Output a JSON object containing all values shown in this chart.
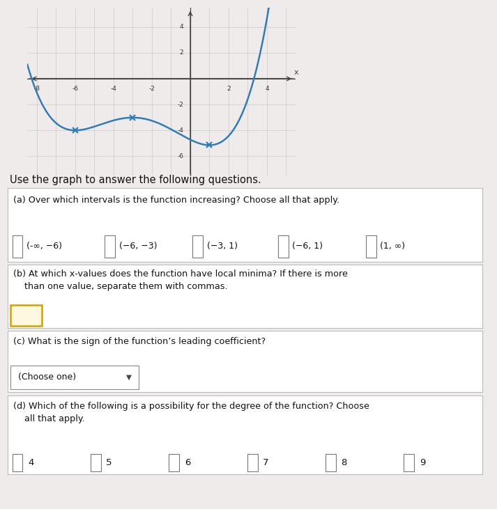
{
  "graph": {
    "xlim": [
      -8.5,
      5.5
    ],
    "ylim": [
      -7.5,
      5.5
    ],
    "xtick_minor": [
      -8,
      -7,
      -6,
      -5,
      -4,
      -3,
      -2,
      -1,
      0,
      1,
      2,
      3,
      4,
      5
    ],
    "ytick_minor": [
      -6,
      -4,
      -2,
      0,
      2,
      4
    ],
    "xlabel_vals": [
      -8,
      -6,
      -4,
      -2,
      2,
      4
    ],
    "ylabel_vals": [
      -6,
      -4,
      -2,
      2,
      4
    ],
    "curve_color": "#2e7db5",
    "curve_lw": 1.8,
    "marker_color": "#2e7db5",
    "grid_color": "#d0c8c8",
    "axis_color": "#444444",
    "bg_color": "#f0ebeb",
    "box_outline": "#999999",
    "poly_a": 0.04,
    "x_start": -8.5,
    "x_end": 4.8
  },
  "question_text": "Use the graph to answer the following questions.",
  "question_text_fontsize": 10.5,
  "parts": [
    {
      "label": "(a)",
      "question": "Over which intervals is the function increasing? Choose all that apply.",
      "options": [
        "(-∞, −6)",
        "(−6, −3)",
        "(−3, 1)",
        "(−6, 1)",
        "(1, ∞)"
      ]
    },
    {
      "label": "(b)",
      "question": "At which x-values does the function have local minima? If there is more than one value, separate them with commas.",
      "input_box": true
    },
    {
      "label": "(c)",
      "question": "What is the sign of the function’s leading coefficient?",
      "dropdown": "(Choose one)"
    },
    {
      "label": "(d)",
      "question": "Which of the following is a possibility for the degree of the function? Choose all that apply.",
      "options_d": [
        "4",
        "5",
        "6",
        "7",
        "8",
        "9"
      ]
    }
  ],
  "page_bg": "#f0ebeb",
  "box_bg": "#ffffff",
  "box_border": "#bbbbbb",
  "text_color": "#111111",
  "checkbox_size": 10,
  "input_border_color": "#d4a000",
  "input_fill_color": "#fff8e0",
  "dropdown_border": "#888888"
}
